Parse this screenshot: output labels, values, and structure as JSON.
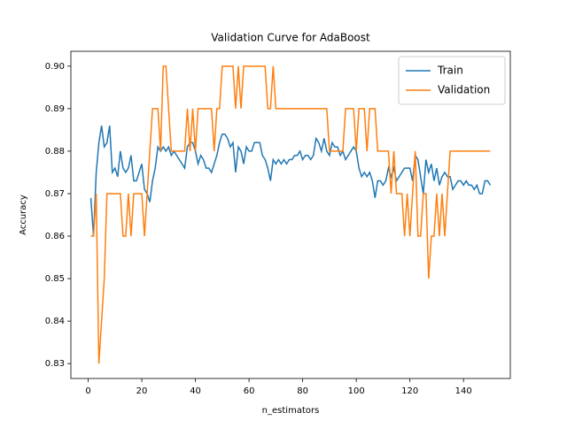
{
  "chart_data": {
    "type": "line",
    "title": "Validation Curve for AdaBoost",
    "x_label": "n_estimators",
    "y_label": "Accuracy",
    "x": [
      1,
      2,
      3,
      4,
      5,
      6,
      7,
      8,
      9,
      10,
      11,
      12,
      13,
      14,
      15,
      16,
      17,
      18,
      19,
      20,
      21,
      22,
      23,
      24,
      25,
      26,
      27,
      28,
      29,
      30,
      31,
      32,
      33,
      34,
      35,
      36,
      37,
      38,
      39,
      40,
      41,
      42,
      43,
      44,
      45,
      46,
      47,
      48,
      49,
      50,
      51,
      52,
      53,
      54,
      55,
      56,
      57,
      58,
      59,
      60,
      61,
      62,
      63,
      64,
      65,
      66,
      67,
      68,
      69,
      70,
      71,
      72,
      73,
      74,
      75,
      76,
      77,
      78,
      79,
      80,
      81,
      82,
      83,
      84,
      85,
      86,
      87,
      88,
      89,
      90,
      91,
      92,
      93,
      94,
      95,
      96,
      97,
      98,
      99,
      100,
      101,
      102,
      103,
      104,
      105,
      106,
      107,
      108,
      109,
      110,
      111,
      112,
      113,
      114,
      115,
      116,
      117,
      118,
      119,
      120,
      121,
      122,
      123,
      124,
      125,
      126,
      127,
      128,
      129,
      130,
      131,
      132,
      133,
      134,
      135,
      136,
      137,
      138,
      139,
      140,
      141,
      142,
      143,
      144,
      145,
      146,
      147,
      148,
      149,
      150
    ],
    "series": [
      {
        "name": "Train",
        "color": "#1f77b4",
        "values": [
          0.869,
          0.86,
          0.875,
          0.882,
          0.886,
          0.881,
          0.882,
          0.886,
          0.875,
          0.876,
          0.874,
          0.88,
          0.876,
          0.875,
          0.876,
          0.879,
          0.873,
          0.873,
          0.875,
          0.877,
          0.871,
          0.87,
          0.868,
          0.873,
          0.876,
          0.881,
          0.88,
          0.881,
          0.88,
          0.881,
          0.879,
          0.88,
          0.879,
          0.878,
          0.877,
          0.876,
          0.881,
          0.882,
          0.882,
          0.88,
          0.877,
          0.879,
          0.878,
          0.876,
          0.876,
          0.875,
          0.877,
          0.879,
          0.882,
          0.884,
          0.884,
          0.883,
          0.881,
          0.882,
          0.875,
          0.881,
          0.88,
          0.877,
          0.881,
          0.88,
          0.88,
          0.882,
          0.882,
          0.882,
          0.879,
          0.878,
          0.876,
          0.873,
          0.878,
          0.877,
          0.878,
          0.877,
          0.878,
          0.877,
          0.878,
          0.878,
          0.879,
          0.879,
          0.88,
          0.878,
          0.879,
          0.879,
          0.878,
          0.879,
          0.883,
          0.882,
          0.88,
          0.883,
          0.88,
          0.879,
          0.882,
          0.881,
          0.881,
          0.879,
          0.88,
          0.878,
          0.879,
          0.88,
          0.881,
          0.88,
          0.876,
          0.874,
          0.875,
          0.874,
          0.875,
          0.873,
          0.869,
          0.873,
          0.873,
          0.872,
          0.873,
          0.876,
          0.874,
          0.876,
          0.873,
          0.874,
          0.875,
          0.876,
          0.876,
          0.876,
          0.873,
          0.879,
          0.878,
          0.874,
          0.87,
          0.878,
          0.875,
          0.877,
          0.873,
          0.876,
          0.872,
          0.874,
          0.875,
          0.874,
          0.874,
          0.871,
          0.872,
          0.873,
          0.873,
          0.872,
          0.873,
          0.872,
          0.872,
          0.871,
          0.872,
          0.87,
          0.87,
          0.873,
          0.873,
          0.872
        ]
      },
      {
        "name": "Validation",
        "color": "#ff7f0e",
        "values": [
          0.86,
          0.86,
          0.87,
          0.83,
          0.84,
          0.85,
          0.87,
          0.87,
          0.87,
          0.87,
          0.87,
          0.87,
          0.86,
          0.86,
          0.87,
          0.86,
          0.87,
          0.87,
          0.87,
          0.87,
          0.86,
          0.87,
          0.88,
          0.89,
          0.89,
          0.89,
          0.88,
          0.9,
          0.9,
          0.89,
          0.88,
          0.88,
          0.88,
          0.88,
          0.88,
          0.88,
          0.89,
          0.88,
          0.89,
          0.88,
          0.89,
          0.89,
          0.89,
          0.89,
          0.89,
          0.89,
          0.88,
          0.89,
          0.89,
          0.9,
          0.9,
          0.9,
          0.9,
          0.9,
          0.89,
          0.9,
          0.89,
          0.9,
          0.9,
          0.9,
          0.9,
          0.9,
          0.9,
          0.9,
          0.9,
          0.9,
          0.89,
          0.89,
          0.9,
          0.89,
          0.89,
          0.89,
          0.89,
          0.89,
          0.89,
          0.89,
          0.89,
          0.89,
          0.89,
          0.89,
          0.89,
          0.89,
          0.89,
          0.89,
          0.89,
          0.89,
          0.89,
          0.89,
          0.89,
          0.88,
          0.88,
          0.88,
          0.88,
          0.88,
          0.88,
          0.89,
          0.89,
          0.89,
          0.89,
          0.88,
          0.89,
          0.89,
          0.89,
          0.88,
          0.89,
          0.89,
          0.89,
          0.88,
          0.88,
          0.88,
          0.88,
          0.88,
          0.87,
          0.88,
          0.87,
          0.87,
          0.87,
          0.86,
          0.87,
          0.86,
          0.87,
          0.88,
          0.86,
          0.86,
          0.87,
          0.87,
          0.85,
          0.86,
          0.86,
          0.87,
          0.86,
          0.87,
          0.86,
          0.87,
          0.88,
          0.88,
          0.88,
          0.88,
          0.88,
          0.88,
          0.88,
          0.88,
          0.88,
          0.88,
          0.88,
          0.88,
          0.88,
          0.88,
          0.88,
          0.88
        ]
      }
    ],
    "xlim": [
      -6.45,
      157.45
    ],
    "ylim": [
      0.8265,
      0.9035
    ],
    "xticks": [
      0,
      20,
      40,
      60,
      80,
      100,
      120,
      140
    ],
    "yticks": [
      0.83,
      0.84,
      0.85,
      0.86,
      0.87,
      0.88,
      0.89,
      {
        "value": 0.9,
        "label": "0.90"
      }
    ],
    "grid": false,
    "legend": "upper right"
  }
}
